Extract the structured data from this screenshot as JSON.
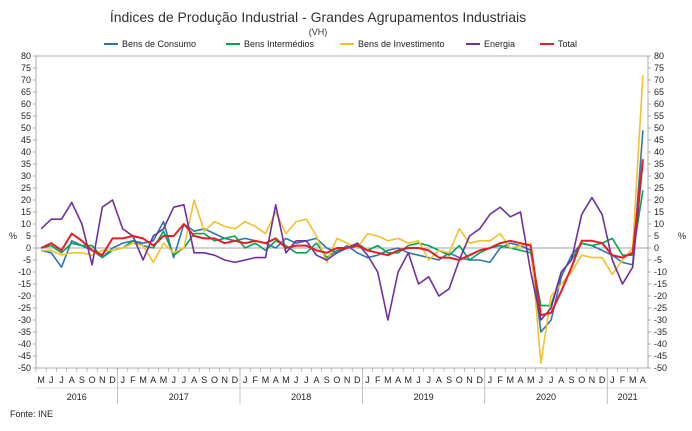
{
  "chart_data": {
    "type": "line",
    "title": "Índices de Produção Industrial - Grandes Agrupamentos Industriais",
    "subtitle": "(VH)",
    "ylabel_left": "%",
    "ylabel_right": "%",
    "ylim": [
      -50,
      80
    ],
    "yticks": [
      80,
      75,
      70,
      65,
      60,
      55,
      50,
      45,
      40,
      35,
      30,
      25,
      20,
      15,
      10,
      5,
      0,
      -5,
      -10,
      -15,
      -20,
      -25,
      -30,
      -35,
      -40,
      -45,
      -50
    ],
    "month_labels": [
      "M",
      "J",
      "J",
      "A",
      "S",
      "O",
      "N",
      "D",
      "J",
      "F",
      "M",
      "A",
      "M",
      "J",
      "J",
      "A",
      "S",
      "O",
      "N",
      "D",
      "J",
      "F",
      "M",
      "A",
      "M",
      "J",
      "J",
      "A",
      "S",
      "O",
      "N",
      "D",
      "J",
      "F",
      "M",
      "A",
      "M",
      "J",
      "J",
      "A",
      "S",
      "O",
      "N",
      "D",
      "J",
      "F",
      "M",
      "A",
      "M",
      "J",
      "J",
      "A",
      "S",
      "O",
      "N",
      "D",
      "J",
      "F",
      "M",
      "A"
    ],
    "years": [
      {
        "label": "2016",
        "start": 0,
        "end": 7
      },
      {
        "label": "2017",
        "start": 8,
        "end": 19
      },
      {
        "label": "2018",
        "start": 20,
        "end": 31
      },
      {
        "label": "2019",
        "start": 32,
        "end": 43
      },
      {
        "label": "2020",
        "start": 44,
        "end": 55
      },
      {
        "label": "2021",
        "start": 56,
        "end": 59
      }
    ],
    "legend_position": "top",
    "grid": false,
    "series": [
      {
        "name": "Bens de Consumo",
        "color": "#2E75B6",
        "values": [
          -1,
          -2,
          -8,
          3,
          1,
          -1,
          -4,
          0,
          2,
          3,
          2,
          3,
          11,
          -4,
          10,
          7,
          8,
          6,
          4,
          3,
          4,
          3,
          2,
          0,
          4,
          2,
          3,
          4,
          0,
          -2,
          1,
          -2,
          -4,
          -3,
          -1,
          0,
          -2,
          -3,
          -4,
          -5,
          -2,
          -4,
          -5,
          -5,
          -6,
          0,
          2,
          1,
          -1,
          -35,
          -30,
          -12,
          -3,
          2,
          1,
          -1,
          -3,
          -6,
          -7,
          49
        ]
      },
      {
        "name": "Bens Intermédios",
        "color": "#00A550",
        "values": [
          0,
          1,
          -2,
          2,
          1,
          1,
          -4,
          -1,
          0,
          3,
          1,
          0,
          7,
          -3,
          0,
          6,
          6,
          3,
          4,
          5,
          0,
          2,
          -1,
          3,
          1,
          -2,
          -2,
          2,
          -4,
          -1,
          0,
          2,
          -1,
          1,
          -2,
          -2,
          1,
          2,
          1,
          -1,
          -3,
          1,
          -5,
          -2,
          0,
          1,
          0,
          -1,
          -2,
          -24,
          -24,
          -10,
          -5,
          2,
          1,
          2,
          4,
          -3,
          -3,
          24
        ]
      },
      {
        "name": "Bens de Investimento",
        "color": "#F2C12E",
        "values": [
          -1,
          -1,
          -3,
          -2,
          -2,
          -3,
          -1,
          -1,
          0,
          2,
          1,
          -6,
          2,
          -2,
          0,
          20,
          7,
          11,
          9,
          8,
          11,
          9,
          6,
          15,
          6,
          11,
          12,
          5,
          -6,
          4,
          2,
          0,
          6,
          5,
          3,
          4,
          2,
          3,
          -5,
          -1,
          -2,
          8,
          2,
          3,
          3,
          6,
          0,
          1,
          2,
          -48,
          -20,
          -15,
          -10,
          -3,
          -4,
          -4,
          -11,
          -5,
          0,
          72
        ]
      },
      {
        "name": "Energia",
        "color": "#7030A0",
        "values": [
          8,
          12,
          12,
          19,
          10,
          -7,
          17,
          20,
          8,
          5,
          -5,
          5,
          8,
          17,
          18,
          -2,
          -2,
          -3,
          -5,
          -6,
          -5,
          -4,
          -4,
          18,
          -2,
          3,
          3,
          -3,
          -5,
          -2,
          0,
          2,
          -3,
          -10,
          -30,
          -10,
          -2,
          -15,
          -12,
          -20,
          -17,
          -5,
          5,
          8,
          14,
          17,
          13,
          15,
          -10,
          -30,
          -25,
          -10,
          -5,
          14,
          21,
          14,
          -5,
          -15,
          -8,
          36
        ]
      },
      {
        "name": "Total",
        "color": "#E31E24",
        "values": [
          0,
          2,
          -1,
          6,
          3,
          -1,
          -3,
          4,
          4,
          5,
          4,
          1,
          5,
          5,
          10,
          5,
          4,
          4,
          2,
          3,
          2,
          3,
          2,
          4,
          0,
          1,
          1,
          -1,
          -2,
          0,
          0,
          1,
          -1,
          -2,
          -3,
          -1,
          0,
          0,
          -1,
          -4,
          -4,
          -5,
          -3,
          -1,
          0,
          2,
          3,
          2,
          1,
          -28,
          -27,
          -18,
          -8,
          3,
          3,
          2,
          -3,
          -4,
          -2,
          37
        ]
      }
    ]
  },
  "footer": {
    "source": "Fonte: INE"
  }
}
